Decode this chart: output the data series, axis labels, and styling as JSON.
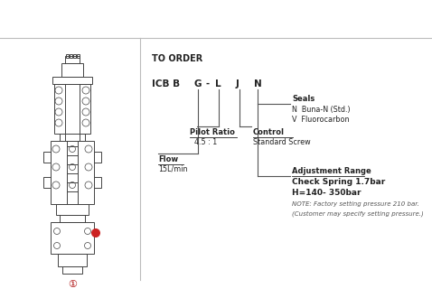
{
  "bg_color": "#ffffff",
  "border_color": "#cccccc",
  "line_color": "#555555",
  "text_color": "#222222",
  "title": "TO ORDER",
  "seals_label": "Seals",
  "seals_n": "N  Buna-N (Std.)",
  "seals_v": "V  Fluorocarbon",
  "pilot_ratio_label": "Pilot Ratio",
  "pilot_ratio_value": "4.5 : 1",
  "control_label": "Control",
  "control_value": "Standard Screw",
  "flow_label": "Flow",
  "flow_value": "15L/min",
  "adj_range_label": "Adjustment Range",
  "adj_range_line1": "Check Spring 1.7bar",
  "adj_range_line2": "H=140- 350bar",
  "note_line1": "NOTE: Factory setting pressure 210 bar.",
  "note_line2": "(Customer may specify setting pressure.)",
  "red_circle_label": "①",
  "red_dot_label": "®"
}
